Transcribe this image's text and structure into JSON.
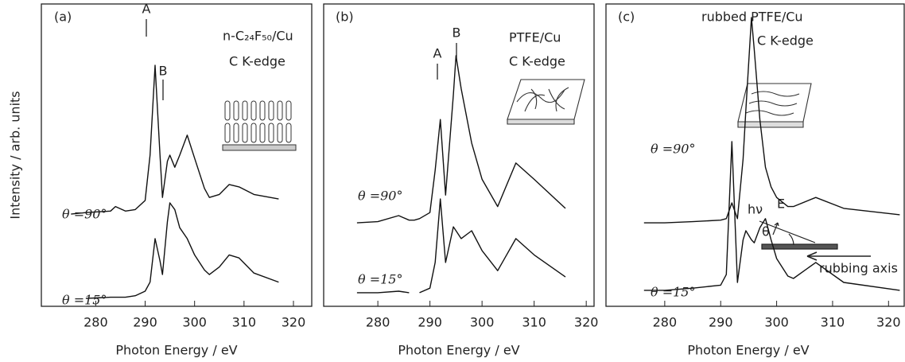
{
  "chart_data": [
    {
      "type": "line",
      "ylabel": "Intensity / arb. units",
      "xlabel": "Photon Energy / eV",
      "annotations": [
        "(a)",
        "A",
        "B",
        "n-C₂₄F₅₀/Cu",
        "C K-edge"
      ],
      "x": [
        275,
        278,
        283,
        284,
        286,
        288,
        290,
        291,
        292,
        293,
        293.5,
        294.5,
        295,
        296,
        297,
        298.5,
        300,
        302,
        303,
        305,
        307,
        309,
        312,
        317
      ],
      "series": [
        {
          "name": "θ =90°",
          "color": "#111111",
          "values": [
            3.05,
            3.1,
            3.15,
            3.3,
            3.15,
            3.2,
            3.5,
            5.0,
            7.97,
            5.0,
            3.6,
            4.8,
            5.0,
            4.6,
            5.0,
            5.66,
            4.9,
            3.9,
            3.6,
            3.7,
            4.03,
            3.95,
            3.7,
            3.55
          ]
        },
        {
          "name": "θ =15°",
          "color": "#111111",
          "values": [
            null,
            0.26,
            0.3,
            0.3,
            0.3,
            0.35,
            0.5,
            0.8,
            2.24,
            1.5,
            1.05,
            2.8,
            3.42,
            3.2,
            2.6,
            2.24,
            1.7,
            1.2,
            1.05,
            1.3,
            1.7,
            1.6,
            1.1,
            0.8
          ]
        }
      ],
      "xlim": [
        269,
        323.7
      ],
      "ylim": [
        0,
        10
      ],
      "xticks": [
        280,
        290,
        300,
        310,
        320
      ]
    },
    {
      "type": "line",
      "xlabel": "Photon Energy / eV",
      "annotations": [
        "(b)",
        "A",
        "B",
        "PTFE/Cu",
        "C K-edge"
      ],
      "x": [
        276,
        280,
        284,
        286,
        287,
        288,
        290,
        291,
        292,
        293,
        294.5,
        295,
        296,
        298,
        300,
        303,
        306.5,
        310,
        316
      ],
      "series": [
        {
          "name": "θ =90°",
          "color": "#111111",
          "values": [
            2.76,
            2.8,
            3.0,
            2.85,
            2.85,
            2.9,
            3.1,
            4.5,
            6.18,
            3.68,
            7.0,
            8.29,
            7.2,
            5.4,
            4.2,
            3.3,
            4.74,
            4.2,
            3.24
          ]
        },
        {
          "name": "θ =15°",
          "color": "#111111",
          "values": [
            0.45,
            0.45,
            0.5,
            0.45,
            null,
            0.45,
            0.6,
            1.45,
            3.55,
            1.45,
            2.63,
            2.5,
            2.24,
            2.5,
            1.84,
            1.18,
            2.24,
            1.7,
            0.97
          ]
        }
      ],
      "xlim": [
        269.6,
        321.5
      ],
      "ylim": [
        0,
        10
      ],
      "xticks": [
        280,
        290,
        300,
        310,
        320
      ]
    },
    {
      "type": "line",
      "xlabel": "Photon Energy / eV",
      "annotations": [
        "(c)",
        "rubbed PTFE/Cu",
        "C K-edge",
        "hν",
        "E",
        "θ",
        "rubbing axis"
      ],
      "x": [
        276.3,
        280,
        285,
        290,
        291,
        292,
        293,
        294,
        294.5,
        295.5,
        296,
        297,
        298,
        299,
        300,
        302,
        303,
        307,
        312,
        322
      ],
      "series": [
        {
          "name": "θ =90°",
          "color": "#111111",
          "values": [
            2.76,
            2.76,
            2.8,
            2.85,
            2.9,
            3.42,
            2.9,
            4.87,
            6.5,
            9.55,
            8.5,
            6.18,
            4.6,
            3.95,
            3.6,
            3.3,
            3.3,
            3.6,
            3.24,
            3.03
          ]
        },
        {
          "name": "θ =15°",
          "color": "#111111",
          "values": [
            0.53,
            0.53,
            0.6,
            0.7,
            1.05,
            5.45,
            0.79,
            2.2,
            2.5,
            2.2,
            2.1,
            2.6,
            2.9,
            2.2,
            1.58,
            1.0,
            0.92,
            1.45,
            0.79,
            0.53
          ]
        }
      ],
      "xlim": [
        269.5,
        322.8
      ],
      "ylim": [
        0,
        10
      ],
      "xticks": [
        280,
        290,
        300,
        310,
        320
      ]
    }
  ]
}
